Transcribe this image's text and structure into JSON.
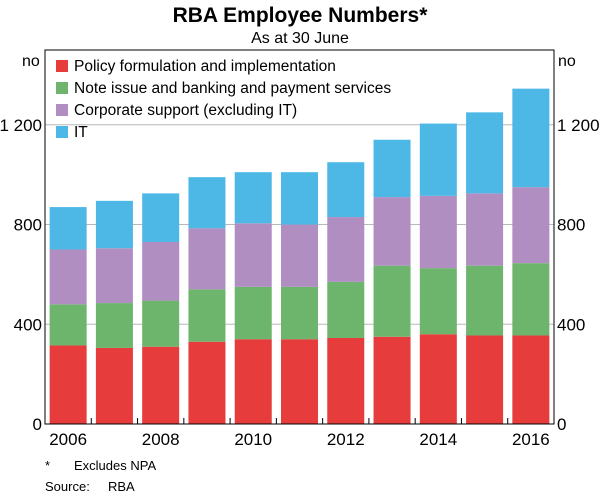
{
  "chart_data": {
    "type": "bar",
    "stacked": true,
    "title": "RBA Employee Numbers*",
    "subtitle": "As at 30 June",
    "yunit_left": "no",
    "yunit_right": "no",
    "ylim": [
      0,
      1500
    ],
    "yticks": [
      0,
      400,
      800,
      1200
    ],
    "ytick_labels": [
      "0",
      "400",
      "800",
      "1 200"
    ],
    "xtick_labels": [
      "2006",
      "2008",
      "2010",
      "2012",
      "2014",
      "2016"
    ],
    "categories": [
      2006,
      2007,
      2008,
      2009,
      2010,
      2011,
      2012,
      2013,
      2014,
      2015,
      2016
    ],
    "grid": true,
    "legend_position": "top-left",
    "series": [
      {
        "name": "Policy formulation and implementation",
        "color": "#e63c3c",
        "values": [
          315,
          305,
          310,
          330,
          340,
          340,
          345,
          350,
          360,
          355,
          355
        ]
      },
      {
        "name": "Note issue and banking and payment services",
        "color": "#6db56d",
        "values": [
          165,
          180,
          185,
          210,
          210,
          210,
          225,
          285,
          265,
          280,
          290
        ]
      },
      {
        "name": "Corporate support (excluding IT)",
        "color": "#b08ec2",
        "values": [
          220,
          220,
          235,
          245,
          255,
          250,
          260,
          275,
          290,
          290,
          305
        ]
      },
      {
        "name": "IT",
        "color": "#4db8e6",
        "values": [
          170,
          190,
          195,
          205,
          205,
          210,
          220,
          230,
          290,
          325,
          395
        ]
      }
    ],
    "footnote_marker": "*",
    "footnote_text": "Excludes NPA",
    "source_label": "Source:",
    "source_text": "RBA"
  }
}
